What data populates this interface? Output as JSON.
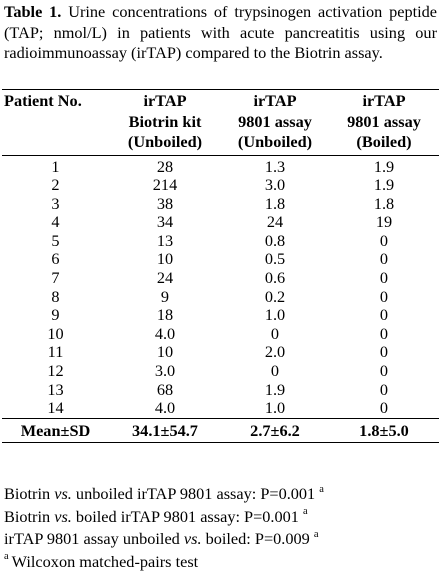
{
  "caption": {
    "label": "Table 1.",
    "text": "Urine concentrations of trypsinogen activation peptide (TAP; nmol/L) in patients with acute pancreatitis using our radioimmunoassay (irTAP) compared to the Biotrin assay."
  },
  "table": {
    "headers": [
      [
        "Patient No."
      ],
      [
        "irTAP",
        "Biotrin kit",
        "(Unboiled)"
      ],
      [
        "irTAP",
        "9801 assay",
        "(Unboiled)"
      ],
      [
        "irTAP",
        "9801 assay",
        "(Boiled)"
      ]
    ],
    "rows": [
      [
        "1",
        "28",
        "1.3",
        "1.9"
      ],
      [
        "2",
        "214",
        "3.0",
        "1.9"
      ],
      [
        "3",
        "38",
        "1.8",
        "1.8"
      ],
      [
        "4",
        "34",
        "24",
        "19"
      ],
      [
        "5",
        "13",
        "0.8",
        "0"
      ],
      [
        "6",
        "10",
        "0.5",
        "0"
      ],
      [
        "7",
        "24",
        "0.6",
        "0"
      ],
      [
        "8",
        "9",
        "0.2",
        "0"
      ],
      [
        "9",
        "18",
        "1.0",
        "0"
      ],
      [
        "10",
        "4.0",
        "0",
        "0"
      ],
      [
        "11",
        "10",
        "2.0",
        "0"
      ],
      [
        "12",
        "3.0",
        "0",
        "0"
      ],
      [
        "13",
        "68",
        "1.9",
        "0"
      ],
      [
        "14",
        "4.0",
        "1.0",
        "0"
      ]
    ],
    "summary": [
      "Mean±SD",
      "34.1±54.7",
      "2.7±6.2",
      "1.8±5.0"
    ]
  },
  "notes": [
    {
      "pre": "Biotrin ",
      "em": "vs.",
      "post": " unboiled irTAP 9801 assay: P=0.001",
      "sup": "a"
    },
    {
      "pre": "Biotrin ",
      "em": "vs.",
      "post": " boiled irTAP 9801 assay: P=0.001",
      "sup": "a"
    },
    {
      "pre": "irTAP 9801 assay unboiled ",
      "em": "vs.",
      "post": " boiled: P=0.009",
      "sup": "a"
    }
  ],
  "footnote": {
    "sup": "a",
    "text": "Wilcoxon matched-pairs test"
  }
}
